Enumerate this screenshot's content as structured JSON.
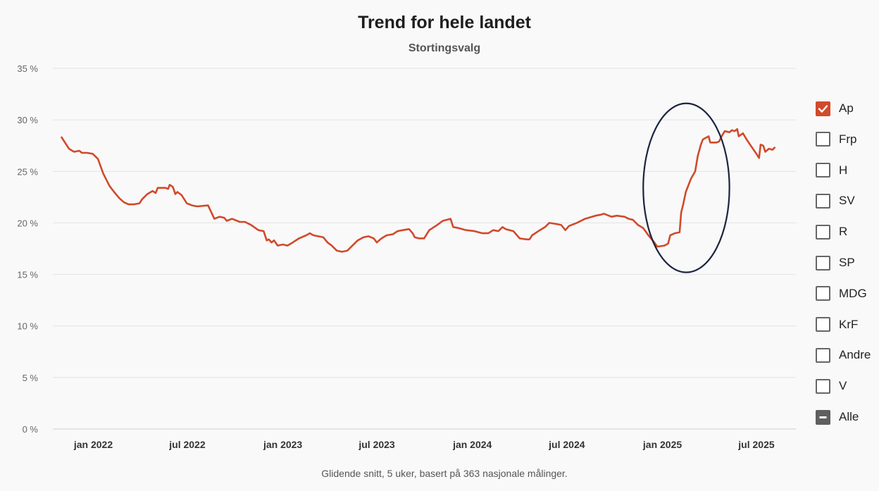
{
  "chart_data": {
    "type": "line",
    "title": "Trend for hele landet",
    "subtitle": "Stortingsvalg",
    "footnote": "Glidende snitt, 5 uker, basert på 363 nasjonale målinger.",
    "y_ticks": [
      "35 %",
      "30 %",
      "25 %",
      "20 %",
      "15 %",
      "10 %",
      "5 %",
      "0 %"
    ],
    "x_ticks": [
      "jan 2022",
      "jul 2022",
      "jan 2023",
      "jul 2023",
      "jan 2024",
      "jul 2024",
      "jan 2025",
      "jul 2025"
    ],
    "ylim": [
      0,
      35
    ],
    "xlim": [
      "2021-10-15",
      "2025-09-15"
    ],
    "grid": true,
    "legend_position": "right",
    "series": [
      {
        "name": "Ap",
        "color": "#d04a2b",
        "points": [
          [
            "2021-11-01",
            28.3
          ],
          [
            "2021-11-15",
            27.2
          ],
          [
            "2021-11-25",
            26.9
          ],
          [
            "2021-12-05",
            27.0
          ],
          [
            "2021-12-10",
            26.8
          ],
          [
            "2021-12-20",
            26.8
          ],
          [
            "2021-12-31",
            26.7
          ],
          [
            "2022-01-10",
            26.2
          ],
          [
            "2022-01-20",
            24.8
          ],
          [
            "2022-02-01",
            23.6
          ],
          [
            "2022-02-10",
            23.0
          ],
          [
            "2022-02-20",
            22.4
          ],
          [
            "2022-03-01",
            22.0
          ],
          [
            "2022-03-10",
            21.8
          ],
          [
            "2022-03-20",
            21.8
          ],
          [
            "2022-03-31",
            21.9
          ],
          [
            "2022-04-05",
            22.3
          ],
          [
            "2022-04-15",
            22.8
          ],
          [
            "2022-04-25",
            23.1
          ],
          [
            "2022-05-01",
            22.9
          ],
          [
            "2022-05-05",
            23.4
          ],
          [
            "2022-05-20",
            23.4
          ],
          [
            "2022-05-25",
            23.3
          ],
          [
            "2022-05-28",
            23.7
          ],
          [
            "2022-06-03",
            23.5
          ],
          [
            "2022-06-08",
            22.8
          ],
          [
            "2022-06-12",
            23.0
          ],
          [
            "2022-06-20",
            22.7
          ],
          [
            "2022-06-30",
            21.9
          ],
          [
            "2022-07-10",
            21.7
          ],
          [
            "2022-07-20",
            21.6
          ],
          [
            "2022-08-10",
            21.7
          ],
          [
            "2022-08-22",
            20.4
          ],
          [
            "2022-09-01",
            20.6
          ],
          [
            "2022-09-10",
            20.5
          ],
          [
            "2022-09-15",
            20.2
          ],
          [
            "2022-09-25",
            20.4
          ],
          [
            "2022-10-10",
            20.1
          ],
          [
            "2022-10-20",
            20.1
          ],
          [
            "2022-11-01",
            19.8
          ],
          [
            "2022-11-15",
            19.3
          ],
          [
            "2022-11-25",
            19.2
          ],
          [
            "2022-12-01",
            18.3
          ],
          [
            "2022-12-05",
            18.4
          ],
          [
            "2022-12-10",
            18.1
          ],
          [
            "2022-12-15",
            18.3
          ],
          [
            "2022-12-22",
            17.8
          ],
          [
            "2023-01-01",
            17.9
          ],
          [
            "2023-01-10",
            17.8
          ],
          [
            "2023-01-20",
            18.1
          ],
          [
            "2023-02-01",
            18.5
          ],
          [
            "2023-02-15",
            18.8
          ],
          [
            "2023-02-22",
            19.0
          ],
          [
            "2023-03-01",
            18.8
          ],
          [
            "2023-03-10",
            18.7
          ],
          [
            "2023-03-20",
            18.6
          ],
          [
            "2023-03-28",
            18.1
          ],
          [
            "2023-04-05",
            17.8
          ],
          [
            "2023-04-15",
            17.3
          ],
          [
            "2023-04-25",
            17.2
          ],
          [
            "2023-05-05",
            17.3
          ],
          [
            "2023-05-15",
            17.8
          ],
          [
            "2023-05-25",
            18.3
          ],
          [
            "2023-06-05",
            18.6
          ],
          [
            "2023-06-15",
            18.7
          ],
          [
            "2023-06-25",
            18.5
          ],
          [
            "2023-07-01",
            18.1
          ],
          [
            "2023-07-10",
            18.5
          ],
          [
            "2023-07-20",
            18.8
          ],
          [
            "2023-08-01",
            18.9
          ],
          [
            "2023-08-10",
            19.2
          ],
          [
            "2023-08-20",
            19.3
          ],
          [
            "2023-09-01",
            19.4
          ],
          [
            "2023-09-08",
            19.0
          ],
          [
            "2023-09-12",
            18.6
          ],
          [
            "2023-09-20",
            18.5
          ],
          [
            "2023-09-30",
            18.5
          ],
          [
            "2023-10-10",
            19.3
          ],
          [
            "2023-10-25",
            19.8
          ],
          [
            "2023-11-05",
            20.2
          ],
          [
            "2023-11-20",
            20.4
          ],
          [
            "2023-11-25",
            19.6
          ],
          [
            "2023-12-05",
            19.5
          ],
          [
            "2023-12-20",
            19.3
          ],
          [
            "2024-01-05",
            19.2
          ],
          [
            "2024-01-20",
            19.0
          ],
          [
            "2024-02-01",
            19.0
          ],
          [
            "2024-02-10",
            19.3
          ],
          [
            "2024-02-20",
            19.2
          ],
          [
            "2024-02-28",
            19.6
          ],
          [
            "2024-03-05",
            19.4
          ],
          [
            "2024-03-20",
            19.2
          ],
          [
            "2024-04-01",
            18.5
          ],
          [
            "2024-04-15",
            18.4
          ],
          [
            "2024-04-20",
            18.4
          ],
          [
            "2024-04-25",
            18.8
          ],
          [
            "2024-05-10",
            19.3
          ],
          [
            "2024-05-20",
            19.6
          ],
          [
            "2024-05-28",
            20.0
          ],
          [
            "2024-06-10",
            19.9
          ],
          [
            "2024-06-20",
            19.8
          ],
          [
            "2024-06-28",
            19.3
          ],
          [
            "2024-07-05",
            19.7
          ],
          [
            "2024-07-20",
            20.0
          ],
          [
            "2024-08-05",
            20.4
          ],
          [
            "2024-08-25",
            20.7
          ],
          [
            "2024-09-05",
            20.8
          ],
          [
            "2024-09-10",
            20.9
          ],
          [
            "2024-09-25",
            20.6
          ],
          [
            "2024-10-05",
            20.7
          ],
          [
            "2024-10-20",
            20.6
          ],
          [
            "2024-10-28",
            20.4
          ],
          [
            "2024-11-05",
            20.3
          ],
          [
            "2024-11-15",
            19.8
          ],
          [
            "2024-11-25",
            19.5
          ],
          [
            "2024-12-05",
            18.8
          ],
          [
            "2024-12-15",
            18.2
          ],
          [
            "2024-12-22",
            17.7
          ],
          [
            "2025-01-05",
            17.8
          ],
          [
            "2025-01-12",
            18.0
          ],
          [
            "2025-01-16",
            18.8
          ],
          [
            "2025-01-25",
            19.0
          ],
          [
            "2025-02-03",
            19.1
          ],
          [
            "2025-02-06",
            21.0
          ],
          [
            "2025-02-10",
            21.8
          ],
          [
            "2025-02-15",
            23.0
          ],
          [
            "2025-02-25",
            24.3
          ],
          [
            "2025-03-05",
            25.0
          ],
          [
            "2025-03-10",
            26.5
          ],
          [
            "2025-03-16",
            27.6
          ],
          [
            "2025-03-20",
            28.1
          ],
          [
            "2025-03-31",
            28.4
          ],
          [
            "2025-04-03",
            27.8
          ],
          [
            "2025-04-15",
            27.8
          ],
          [
            "2025-04-20",
            27.9
          ],
          [
            "2025-04-25",
            28.4
          ],
          [
            "2025-05-01",
            28.9
          ],
          [
            "2025-05-10",
            28.8
          ],
          [
            "2025-05-15",
            29.0
          ],
          [
            "2025-05-20",
            28.9
          ],
          [
            "2025-05-25",
            29.1
          ],
          [
            "2025-05-28",
            28.4
          ],
          [
            "2025-06-05",
            28.7
          ],
          [
            "2025-06-12",
            28.1
          ],
          [
            "2025-06-20",
            27.5
          ],
          [
            "2025-07-01",
            26.7
          ],
          [
            "2025-07-06",
            26.3
          ],
          [
            "2025-07-09",
            27.6
          ],
          [
            "2025-07-14",
            27.5
          ],
          [
            "2025-07-18",
            26.9
          ],
          [
            "2025-07-25",
            27.2
          ],
          [
            "2025-08-01",
            27.1
          ],
          [
            "2025-08-05",
            27.3
          ]
        ]
      }
    ],
    "annotations": [
      {
        "type": "ellipse",
        "shape": "outline",
        "color": "#1b2440",
        "x_range": [
          "2024-11-25",
          "2025-05-10"
        ],
        "y_range": [
          15.2,
          31.6
        ]
      }
    ]
  },
  "legend": {
    "items": [
      {
        "label": "Ap",
        "state": "checked"
      },
      {
        "label": "Frp",
        "state": "unchecked"
      },
      {
        "label": "H",
        "state": "unchecked"
      },
      {
        "label": "SV",
        "state": "unchecked"
      },
      {
        "label": "R",
        "state": "unchecked"
      },
      {
        "label": "SP",
        "state": "unchecked"
      },
      {
        "label": "MDG",
        "state": "unchecked"
      },
      {
        "label": "KrF",
        "state": "unchecked"
      },
      {
        "label": "Andre",
        "state": "unchecked"
      },
      {
        "label": "V",
        "state": "unchecked"
      },
      {
        "label": "Alle",
        "state": "indeterminate"
      }
    ]
  }
}
